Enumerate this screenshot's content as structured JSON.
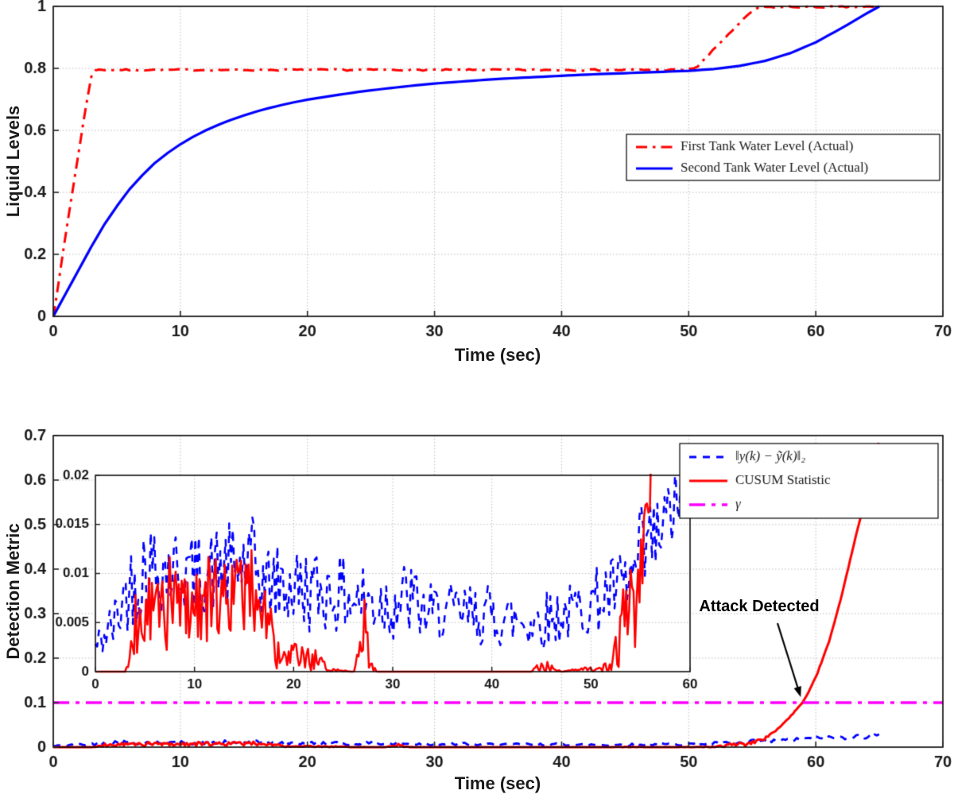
{
  "chart_data": [
    {
      "id": "liquid-levels",
      "type": "line",
      "title": "",
      "xlabel": "Time (sec)",
      "ylabel": "Liquid Levels",
      "xlim": [
        0,
        70
      ],
      "ylim": [
        0,
        1
      ],
      "xticks": [
        0,
        10,
        20,
        30,
        40,
        50,
        60,
        70
      ],
      "xtick_labels": [
        "0",
        "10",
        "20",
        "30",
        "40",
        "50",
        "60",
        "70"
      ],
      "yticks": [
        0,
        0.2,
        0.4,
        0.6,
        0.8,
        1
      ],
      "ytick_labels": [
        "0",
        "0.2",
        "0.4",
        "0.6",
        "0.8",
        "1"
      ],
      "grid": true,
      "legend": {
        "position": "middle-right",
        "entries": [
          {
            "label": "First Tank Water Level (Actual)",
            "color": "#FF0000",
            "linestyle": "dashdot",
            "linewidth": 3
          },
          {
            "label": "Second Tank Water Level (Actual)",
            "color": "#0000FF",
            "linestyle": "solid",
            "linewidth": 3.2
          }
        ]
      },
      "series": [
        {
          "name": "First Tank Water Level (Actual)",
          "color": "#FF0000",
          "linestyle": "dashdot",
          "linewidth": 3,
          "gen": {
            "mode": "keypoints",
            "step": 0.3,
            "noise": 0.0025,
            "seed": 7,
            "keypoints": [
              [
                0,
                0
              ],
              [
                0.5,
                0.13
              ],
              [
                1,
                0.27
              ],
              [
                1.5,
                0.4
              ],
              [
                2,
                0.53
              ],
              [
                2.5,
                0.66
              ],
              [
                3,
                0.775
              ],
              [
                3.3,
                0.795
              ],
              [
                50,
                0.795
              ],
              [
                50.7,
                0.806
              ],
              [
                52,
                0.862
              ],
              [
                53,
                0.905
              ],
              [
                54,
                0.945
              ],
              [
                55,
                0.985
              ],
              [
                55.6,
                0.998
              ],
              [
                65,
                0.998
              ]
            ]
          }
        },
        {
          "name": "Second Tank Water Level (Actual)",
          "color": "#0000FF",
          "linestyle": "solid",
          "linewidth": 3.2,
          "gen": {
            "mode": "keypoints",
            "step": 0.5,
            "noise": 0,
            "seed": 1,
            "keypoints": [
              [
                0,
                0
              ],
              [
                1,
                0.075
              ],
              [
                2,
                0.15
              ],
              [
                3,
                0.225
              ],
              [
                4,
                0.295
              ],
              [
                5,
                0.355
              ],
              [
                6,
                0.41
              ],
              [
                7,
                0.455
              ],
              [
                8,
                0.495
              ],
              [
                9,
                0.527
              ],
              [
                10,
                0.555
              ],
              [
                11,
                0.579
              ],
              [
                12,
                0.6
              ],
              [
                13,
                0.618
              ],
              [
                14,
                0.634
              ],
              [
                15,
                0.648
              ],
              [
                16,
                0.661
              ],
              [
                17,
                0.672
              ],
              [
                18,
                0.682
              ],
              [
                19,
                0.691
              ],
              [
                20,
                0.699
              ],
              [
                22,
                0.712
              ],
              [
                24,
                0.724
              ],
              [
                26,
                0.734
              ],
              [
                28,
                0.743
              ],
              [
                30,
                0.751
              ],
              [
                32,
                0.757
              ],
              [
                34,
                0.763
              ],
              [
                36,
                0.768
              ],
              [
                38,
                0.772
              ],
              [
                40,
                0.776
              ],
              [
                42,
                0.78
              ],
              [
                44,
                0.783
              ],
              [
                46,
                0.786
              ],
              [
                48,
                0.789
              ],
              [
                50,
                0.792
              ],
              [
                52,
                0.798
              ],
              [
                54,
                0.808
              ],
              [
                56,
                0.824
              ],
              [
                58,
                0.849
              ],
              [
                60,
                0.884
              ],
              [
                62,
                0.929
              ],
              [
                63,
                0.953
              ],
              [
                64,
                0.977
              ],
              [
                65,
                1.0
              ]
            ]
          }
        }
      ]
    },
    {
      "id": "detection-metric",
      "type": "line",
      "title": "",
      "xlabel": "Time (sec)",
      "ylabel": "Detection Metric",
      "xlim": [
        0,
        70
      ],
      "ylim": [
        0,
        0.7
      ],
      "xticks": [
        0,
        10,
        20,
        30,
        40,
        50,
        60,
        70
      ],
      "xtick_labels": [
        "0",
        "10",
        "20",
        "30",
        "40",
        "50",
        "60",
        "70"
      ],
      "yticks": [
        0,
        0.1,
        0.2,
        0.3,
        0.4,
        0.5,
        0.6,
        0.7
      ],
      "ytick_labels": [
        "0",
        "0.1",
        "0.2",
        "0.3",
        "0.4",
        "0.5",
        "0.6",
        "0.7"
      ],
      "grid": true,
      "legend": {
        "position": "top-right",
        "entries": [
          {
            "label": "‖y(k) − ỹ(k)‖₂",
            "color": "#0000FF",
            "linestyle": "dash",
            "linewidth": 3,
            "italic": true
          },
          {
            "label": "CUSUM Statistic",
            "color": "#FF0000",
            "linestyle": "solid",
            "linewidth": 3
          },
          {
            "label": "γ",
            "color": "#FF00FF",
            "linestyle": "dashdot-long",
            "linewidth": 3.5,
            "italic": true
          }
        ]
      },
      "annotation": {
        "text": "Attack Detected",
        "points_to": {
          "x": 59,
          "y": 0.1
        }
      },
      "series": [
        {
          "name": "residual-norm",
          "color": "#0000FF",
          "linestyle": "dash",
          "linewidth": 2.8,
          "gen": {
            "mode": "band",
            "step": 0.18,
            "seed": 42,
            "envelope": [
              [
                0,
                0.001,
                0.004
              ],
              [
                2,
                0.002,
                0.008
              ],
              [
                3,
                0.004,
                0.012
              ],
              [
                5,
                0.005,
                0.016
              ],
              [
                8,
                0.006,
                0.015
              ],
              [
                10,
                0.006,
                0.014
              ],
              [
                13,
                0.006,
                0.015
              ],
              [
                16,
                0.006,
                0.0158
              ],
              [
                17,
                0.005,
                0.013
              ],
              [
                20,
                0.004,
                0.013
              ],
              [
                24,
                0.004,
                0.012
              ],
              [
                28,
                0.003,
                0.011
              ],
              [
                32,
                0.003,
                0.0115
              ],
              [
                33,
                0.003,
                0.009
              ],
              [
                36,
                0.003,
                0.009
              ],
              [
                40,
                0.0025,
                0.009
              ],
              [
                44,
                0.002,
                0.008
              ],
              [
                48,
                0.003,
                0.009
              ],
              [
                51,
                0.004,
                0.011
              ],
              [
                54,
                0.005,
                0.013
              ],
              [
                55.5,
                0.006,
                0.0185
              ],
              [
                56.5,
                0.008,
                0.018
              ],
              [
                58,
                0.012,
                0.02
              ],
              [
                60,
                0.015,
                0.024
              ],
              [
                62,
                0.017,
                0.027
              ],
              [
                64,
                0.019,
                0.03
              ],
              [
                65,
                0.02,
                0.03
              ]
            ]
          }
        },
        {
          "name": "cusum-statistic",
          "color": "#FF0000",
          "linestyle": "solid",
          "linewidth": 3,
          "gen": {
            "mode": "band",
            "step": 0.15,
            "seed": 99,
            "envelope": [
              [
                0,
                0,
                0
              ],
              [
                3,
                0,
                0
              ],
              [
                3.5,
                0,
                0.002
              ],
              [
                4,
                0,
                0.008
              ],
              [
                5,
                0.001,
                0.01
              ],
              [
                6,
                0.002,
                0.011
              ],
              [
                8,
                0.002,
                0.012
              ],
              [
                10,
                0.003,
                0.011
              ],
              [
                12,
                0.003,
                0.012
              ],
              [
                14,
                0.004,
                0.012
              ],
              [
                16,
                0.004,
                0.0125
              ],
              [
                17,
                0.003,
                0.011
              ],
              [
                18,
                0,
                0.006
              ],
              [
                18.6,
                0,
                0.002
              ],
              [
                20,
                0,
                0.003
              ],
              [
                22,
                0,
                0.0025
              ],
              [
                23.5,
                0,
                0.0005
              ],
              [
                26,
                0,
                0
              ],
              [
                26.8,
                0,
                0.004
              ],
              [
                27.2,
                0,
                0.009
              ],
              [
                27.6,
                0,
                0.002
              ],
              [
                28.5,
                0,
                0
              ],
              [
                44,
                0,
                0
              ],
              [
                45,
                0,
                0.0015
              ],
              [
                47,
                0,
                0
              ],
              [
                52,
                0,
                0.001
              ],
              [
                53,
                0,
                0.008
              ],
              [
                54,
                0,
                0.012
              ],
              [
                55,
                0.004,
                0.014
              ],
              [
                55.8,
                0.012,
                0.02
              ],
              [
                56.5,
                0.028,
                0.031
              ],
              [
                57,
                0.04,
                0.042
              ],
              [
                58,
                0.068,
                0.07
              ],
              [
                59,
                0.099,
                0.102
              ],
              [
                60,
                0.155,
                0.158
              ],
              [
                61,
                0.232,
                0.235
              ],
              [
                62,
                0.335,
                0.338
              ],
              [
                63,
                0.455,
                0.458
              ],
              [
                64,
                0.568,
                0.572
              ],
              [
                65,
                0.688,
                0.692
              ]
            ]
          }
        },
        {
          "name": "gamma-threshold",
          "color": "#FF00FF",
          "linestyle": "dashdot-long",
          "linewidth": 3.5,
          "gen": {
            "mode": "hline",
            "y": 0.1,
            "x0": 0,
            "x1": 70
          }
        }
      ],
      "inset": {
        "xlim": [
          0,
          60
        ],
        "ylim": [
          0,
          0.02
        ],
        "xticks": [
          0,
          10,
          20,
          30,
          40,
          50,
          60
        ],
        "xtick_labels": [
          "0",
          "10",
          "20",
          "30",
          "40",
          "50",
          "60"
        ],
        "yticks": [
          0,
          0.005,
          0.01,
          0.015,
          0.02
        ],
        "ytick_labels": [
          "0",
          "0.005",
          "0.01",
          "0.015",
          "0.02"
        ],
        "grid": true,
        "series_refs": [
          0,
          1
        ]
      }
    }
  ]
}
